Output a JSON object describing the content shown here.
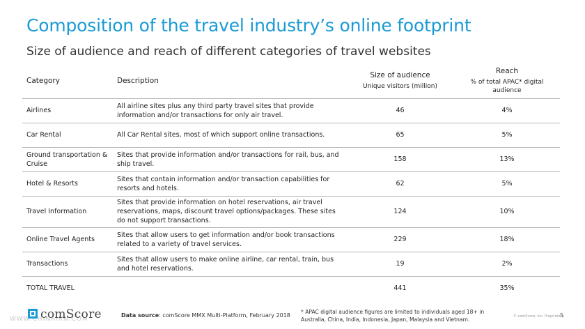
{
  "title": "Composition of the travel industry’s online footprint",
  "subtitle": "Size of audience and reach of different categories of travel websites",
  "table": {
    "headers": {
      "category": "Category",
      "description": "Description",
      "size_title": "Size of audience",
      "size_sub": "Unique visitors (million)",
      "reach_title": "Reach",
      "reach_sub": "% of total APAC* digital audience"
    },
    "rows": [
      {
        "category": "Airlines",
        "description": "All airline sites plus any third party travel sites that provide information and/or transactions for only air travel.",
        "size": "46",
        "reach": "4%"
      },
      {
        "category": "Car Rental",
        "description": "All Car Rental sites, most of which support online transactions.",
        "size": "65",
        "reach": "5%"
      },
      {
        "category": "Ground transportation & Cruise",
        "description": "Sites that provide information and/or transactions for rail, bus, and ship travel.",
        "size": "158",
        "reach": "13%"
      },
      {
        "category": "Hotel & Resorts",
        "description": "Sites that contain information and/or transaction capabilities for resorts and hotels.",
        "size": "62",
        "reach": "5%"
      },
      {
        "category": "Travel Information",
        "description": "Sites that provide information on hotel reservations, air travel reservations, maps, discount travel options/packages. These sites do not support transactions.",
        "size": "124",
        "reach": "10%"
      },
      {
        "category": "Online Travel Agents",
        "description": "Sites that allow users to get information and/or book transactions related to a variety of travel services.",
        "size": "229",
        "reach": "18%"
      },
      {
        "category": "Transactions",
        "description": "Sites that allow users to make online airline, car rental, train, bus and hotel reservations.",
        "size": "19",
        "reach": "2%"
      }
    ],
    "total": {
      "category": "TOTAL TRAVEL",
      "size": "441",
      "reach": "35%"
    }
  },
  "footer": {
    "logo_text": "comScore",
    "watermark": "WWW.CHINAIRN.COM",
    "source_label": "Data source",
    "source_text": ": comScore MMX Multi-Platform, February 2018",
    "footnote": "* APAC digital audience figures are limited to individuals aged 18+ in Australia, China, India, Indonesia, Japan, Malaysia and Vietnam.",
    "copyright": "© comScore, Inc. Proprietary.",
    "page": "5"
  },
  "colors": {
    "accent": "#1a9ad6",
    "rule": "#b5b5b5"
  }
}
